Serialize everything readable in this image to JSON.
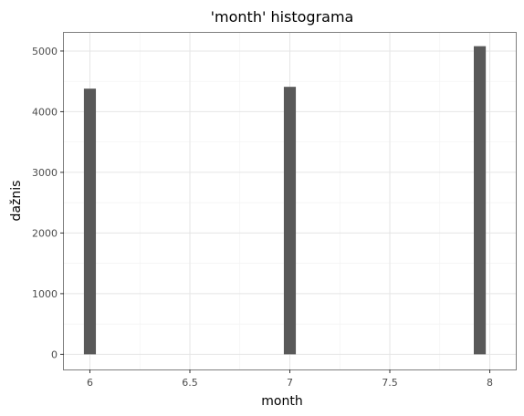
{
  "chart_data": {
    "type": "bar",
    "title": "'month' histograma",
    "xlabel": "month",
    "ylabel": "dažnis",
    "x_ticks": [
      "6",
      "6.5",
      "7",
      "7.5",
      "8"
    ],
    "y_ticks": [
      "0",
      "1000",
      "2000",
      "3000",
      "4000",
      "5000"
    ],
    "xlim": [
      5.87,
      8.13
    ],
    "ylim": [
      -250,
      5300
    ],
    "bars": [
      {
        "x": 6,
        "value": 4380
      },
      {
        "x": 7,
        "value": 4410
      },
      {
        "x": 7.95,
        "value": 5080
      }
    ],
    "bar_width": 0.06,
    "bar_color": "#595959",
    "grid": true
  }
}
